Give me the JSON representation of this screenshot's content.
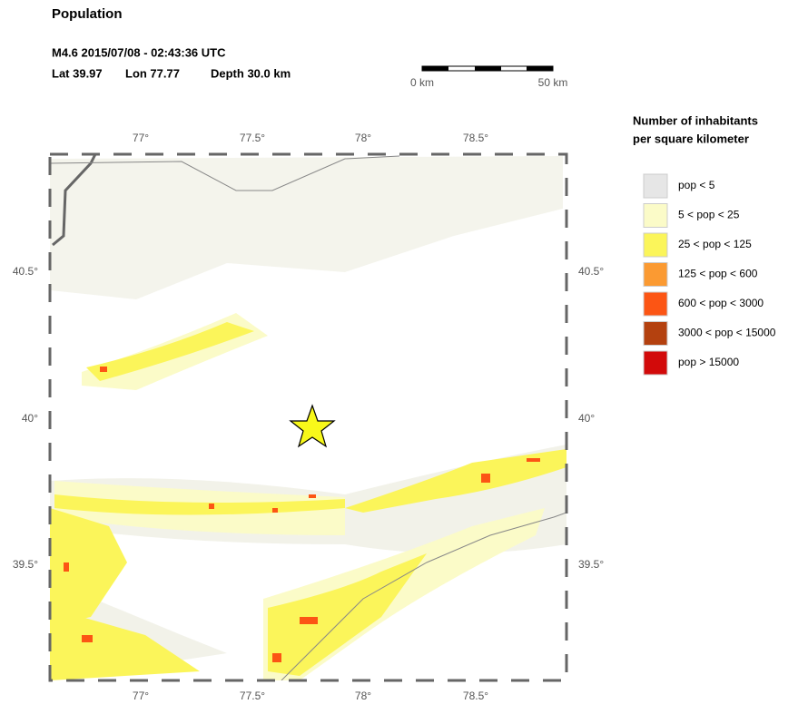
{
  "title": "Population",
  "event": {
    "line1": "M4.6  2015/07/08 - 02:43:36 UTC",
    "lat": "Lat 39.97",
    "lon": "Lon  77.77",
    "depth": "Depth  30.0 km"
  },
  "scale_bar": {
    "start": "0 km",
    "end": "50 km"
  },
  "map": {
    "top_labels": [
      "77°",
      "77.5°",
      "78°",
      "78.5°"
    ],
    "bottom_labels": [
      "77°",
      "77.5°",
      "78°",
      "78.5°"
    ],
    "left_labels": [
      "40.5°",
      "40°",
      "39.5°"
    ],
    "right_labels": [
      "40.5°",
      "40°",
      "39.5°"
    ]
  },
  "legend": {
    "title_lines": [
      "Number of inhabitants",
      "per square kilometer"
    ],
    "items": [
      {
        "label": "pop < 5",
        "color": "#e6e6e6"
      },
      {
        "label": "5 < pop < 25",
        "color": "#fbfbc8"
      },
      {
        "label": "25 < pop < 125",
        "color": "#fbf55a"
      },
      {
        "label": "125 < pop < 600",
        "color": "#fb9a32"
      },
      {
        "label": "600 < pop < 3000",
        "color": "#fc5514"
      },
      {
        "label": "3000 < pop < 15000",
        "color": "#b4410f"
      },
      {
        "label": "pop > 15000",
        "color": "#d20a0a"
      }
    ]
  }
}
